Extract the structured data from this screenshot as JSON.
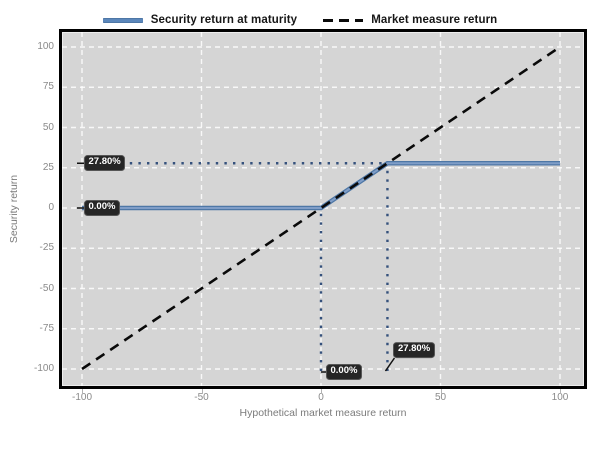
{
  "chart_data": {
    "type": "line",
    "title": "",
    "xlabel": "Hypothetical market measure return",
    "ylabel": "Security return",
    "xlim": [
      -100,
      100
    ],
    "ylim": [
      -100,
      100
    ],
    "x_ticks": [
      -100,
      -50,
      0,
      50,
      100
    ],
    "y_ticks": [
      100,
      75,
      50,
      25,
      0,
      -25,
      -50,
      -75,
      -100
    ],
    "grid": true,
    "legend_position": "top-center",
    "series": [
      {
        "name": "Security return at maturity",
        "style": "solid",
        "points": [
          [
            -100,
            0
          ],
          [
            0,
            0
          ],
          [
            27.8,
            27.8
          ],
          [
            100,
            27.8
          ]
        ]
      },
      {
        "name": "Market measure return",
        "style": "dashed",
        "points": [
          [
            -100,
            -100
          ],
          [
            100,
            100
          ]
        ]
      }
    ],
    "guides": [
      {
        "type": "h",
        "y": 27.8,
        "x1": -80,
        "x2": 27.8
      },
      {
        "type": "v",
        "x": 0,
        "y1": -100,
        "y2": 0
      },
      {
        "type": "v",
        "x": 27.8,
        "y1": -100,
        "y2": 27.8
      }
    ],
    "annotations": [
      {
        "text": "27.80%",
        "anchor": "left",
        "value": 27.8,
        "raised": false
      },
      {
        "text": "0.00%",
        "anchor": "left",
        "value": 0,
        "raised": false
      },
      {
        "text": "0.00%",
        "anchor": "bottom",
        "value": 0,
        "raised": false
      },
      {
        "text": "27.80%",
        "anchor": "bottom",
        "value": 27.8,
        "raised": true
      }
    ]
  },
  "colors": {
    "plot_bg": "#d5d5d5",
    "grid": "#ffffff",
    "series_blue_edge": "#4e77a6",
    "series_blue_core": "#7f9dc7",
    "legend_blue": "#5b87bb",
    "guide_dot": "#35517c",
    "dashed_black": "#0a0a0a",
    "leader": "#111111",
    "tick_mark": "#b3b3b3",
    "annotation_bg": "#262626",
    "annotation_text": "#ffffff"
  }
}
